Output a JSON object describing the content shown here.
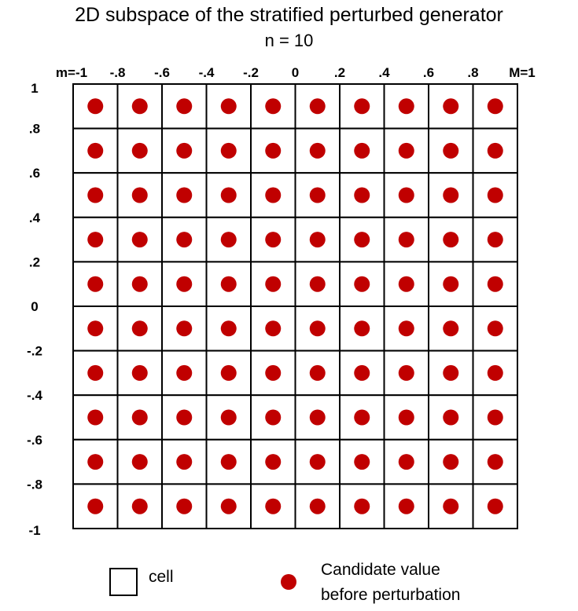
{
  "title": "2D subspace of the stratified perturbed generator",
  "subtitle": "n = 10",
  "colors": {
    "point": "#c00000",
    "grid": "#000000"
  },
  "chart_data": {
    "type": "scatter",
    "x_tick_labels": [
      "m=-1",
      "-.8",
      "-.6",
      "-.4",
      "-.2",
      "0",
      ".2",
      ".4",
      ".6",
      ".8",
      "M=1"
    ],
    "x_tick_values": [
      -1,
      -0.8,
      -0.6,
      -0.4,
      -0.2,
      0,
      0.2,
      0.4,
      0.6,
      0.8,
      1
    ],
    "y_tick_labels": [
      "1",
      ".8",
      ".6",
      ".4",
      ".2",
      "0",
      "-.2",
      "-.4",
      "-.6",
      "-.8",
      "-1"
    ],
    "y_tick_values": [
      1,
      0.8,
      0.6,
      0.4,
      0.2,
      0,
      -0.2,
      -0.4,
      -0.6,
      -0.8,
      -1
    ],
    "xlim": [
      -1,
      1
    ],
    "ylim": [
      -1,
      1
    ],
    "grid_divisions": 10,
    "points_x": [
      -0.9,
      -0.7,
      -0.5,
      -0.3,
      -0.1,
      0.1,
      0.3,
      0.5,
      0.7,
      0.9
    ],
    "points_y": [
      0.9,
      0.7,
      0.5,
      0.3,
      0.1,
      -0.1,
      -0.3,
      -0.5,
      -0.7,
      -0.9
    ],
    "grid": true
  },
  "legend": {
    "cell_label": "cell",
    "point_label_line1": "Candidate value",
    "point_label_line2": "before perturbation"
  }
}
